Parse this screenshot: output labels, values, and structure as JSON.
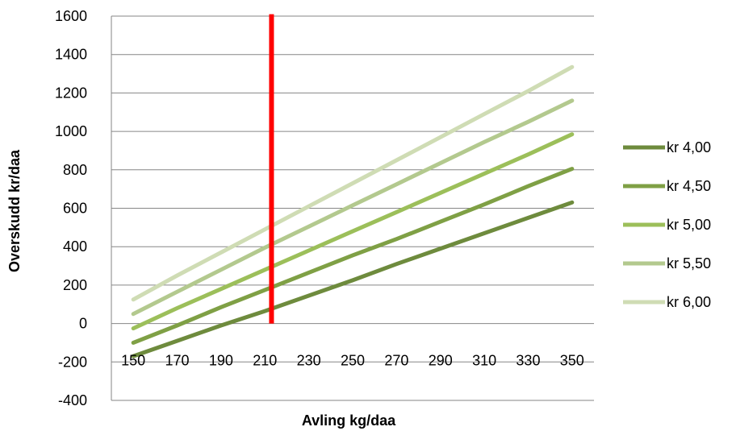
{
  "chart_data": {
    "type": "line",
    "title": "",
    "xlabel": "Avling kg/daa",
    "ylabel": "Overskudd kr/daa",
    "x": [
      150,
      170,
      190,
      210,
      230,
      250,
      270,
      290,
      310,
      330,
      350
    ],
    "x_tick_labels": [
      "150",
      "170",
      "190",
      "210",
      "230",
      "250",
      "270",
      "290",
      "310",
      "330",
      "350"
    ],
    "ylim": [
      -400,
      1600
    ],
    "y_ticks": [
      -400,
      -200,
      0,
      200,
      400,
      600,
      800,
      1000,
      1200,
      1400,
      1600
    ],
    "grid": "horizontal",
    "legend_position": "right",
    "series": [
      {
        "name": "kr 4,00",
        "color": "#6e8b3d",
        "values": [
          -170,
          -90,
          -10,
          65,
          145,
          225,
          310,
          390,
          470,
          550,
          630
        ]
      },
      {
        "name": "kr 4,50",
        "color": "#7fa045",
        "values": [
          -100,
          -10,
          85,
          175,
          265,
          355,
          440,
          530,
          620,
          715,
          805
        ]
      },
      {
        "name": "kr 5,00",
        "color": "#9cbf5a",
        "values": [
          -25,
          80,
          180,
          280,
          380,
          480,
          580,
          680,
          780,
          880,
          985
        ]
      },
      {
        "name": "kr 5,50",
        "color": "#b3c98e",
        "values": [
          50,
          165,
          280,
          395,
          505,
          615,
          725,
          835,
          945,
          1050,
          1160
        ]
      },
      {
        "name": "kr 6,00",
        "color": "#cfdcb4",
        "values": [
          125,
          250,
          370,
          490,
          610,
          730,
          850,
          970,
          1090,
          1210,
          1335
        ]
      }
    ],
    "annotations": [
      {
        "type": "vertical-line",
        "x": 213,
        "y_from": 0,
        "y_to": 1610,
        "color": "#ff0000"
      }
    ]
  }
}
